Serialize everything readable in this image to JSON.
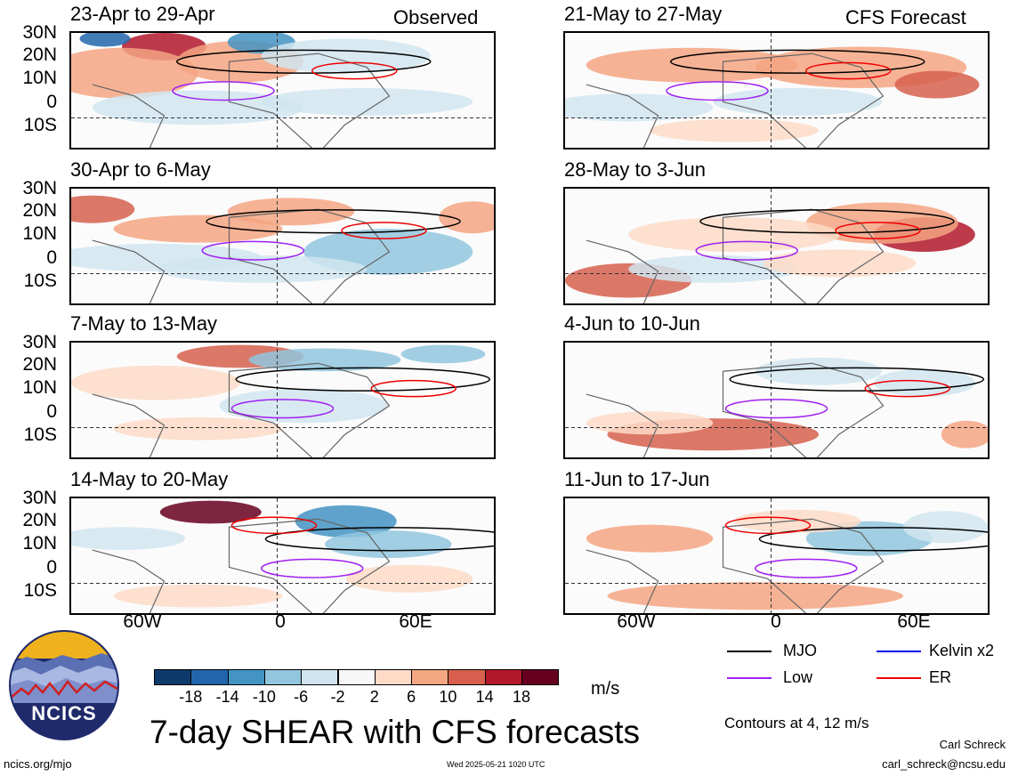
{
  "header": {
    "observed_label": "Observed",
    "forecast_label": "CFS Forecast"
  },
  "panels_left": [
    {
      "title": "23-Apr to 29-Apr"
    },
    {
      "title": "30-Apr to 6-May"
    },
    {
      "title": "7-May to 13-May"
    },
    {
      "title": "14-May to 20-May"
    }
  ],
  "panels_right": [
    {
      "title": "21-May to 27-May"
    },
    {
      "title": "28-May to 3-Jun"
    },
    {
      "title": "4-Jun to 10-Jun"
    },
    {
      "title": "11-Jun to 17-Jun"
    }
  ],
  "lat_labels": [
    "30N",
    "20N",
    "10N",
    "0",
    "10S"
  ],
  "lon_labels": [
    "60W",
    "0",
    "60E"
  ],
  "colorbar": {
    "tick_labels": [
      "-18",
      "-14",
      "-10",
      "-6",
      "-2",
      "2",
      "6",
      "10",
      "14",
      "18"
    ],
    "units": "m/s",
    "colors": [
      "#0d3a6b",
      "#2166ac",
      "#4393c3",
      "#92c5de",
      "#d1e5f0",
      "#f7f7f7",
      "#fddbc7",
      "#f4a582",
      "#d6604d",
      "#b2182b",
      "#67001f"
    ]
  },
  "legend": {
    "items": [
      {
        "label": "MJO",
        "color": "#000000"
      },
      {
        "label": "Kelvin x2",
        "color": "#0000ee"
      },
      {
        "label": "Low",
        "color": "#a020f0"
      },
      {
        "label": "ER",
        "color": "#ee0000"
      }
    ],
    "contours_note": "Contours at 4, 12 m/s"
  },
  "footer": {
    "logo_text": "NCICS",
    "main_title": "7-day SHEAR with CFS forecasts",
    "url": "ncics.org/mjo",
    "timestamp": "Wed 2025-05-21 1020 UTC",
    "author": "Carl Schreck",
    "email": "carl_schreck@ncsu.edu"
  }
}
